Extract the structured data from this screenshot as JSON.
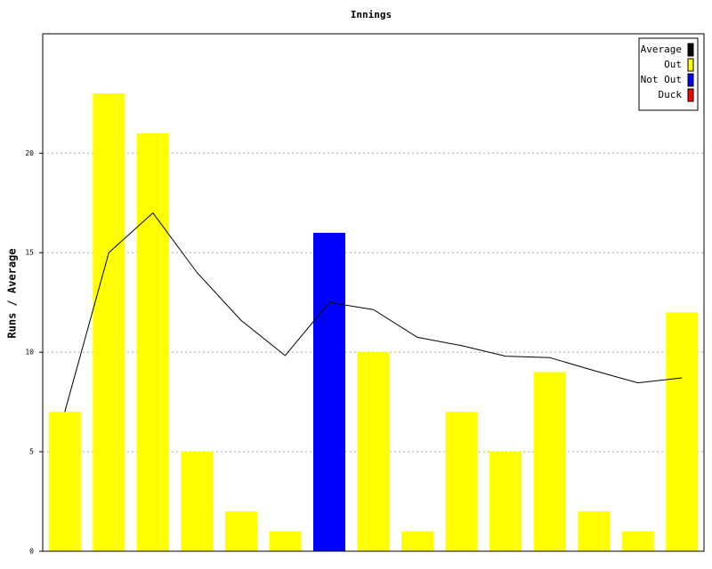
{
  "chart_data": {
    "type": "bar",
    "title": "Innings",
    "y_label": "Runs / Average",
    "ylim": [
      0,
      26
    ],
    "yticks": [
      0,
      5,
      10,
      15,
      20
    ],
    "grid": true,
    "legend": "upper right",
    "series": [
      {
        "name": "Average",
        "type": "line",
        "color": "#000000",
        "values": [
          7,
          15,
          17,
          14,
          11.6,
          9.83,
          12.5,
          12.14,
          10.75,
          10.33,
          9.8,
          9.73,
          9.08,
          8.46,
          8.71
        ]
      },
      {
        "name": "Out",
        "color": "#ffff00",
        "values": [
          7,
          23,
          21,
          5,
          2,
          1,
          null,
          10,
          1,
          7,
          5,
          9,
          2,
          1,
          12
        ]
      },
      {
        "name": "Not Out",
        "color": "#0000ff",
        "values": [
          null,
          null,
          null,
          null,
          null,
          null,
          16,
          null,
          null,
          null,
          null,
          null,
          null,
          null,
          null
        ]
      },
      {
        "name": "Duck",
        "color": "#ff0000",
        "values": [
          null,
          null,
          null,
          null,
          null,
          null,
          null,
          null,
          null,
          null,
          null,
          null,
          null,
          null,
          null
        ]
      }
    ]
  }
}
